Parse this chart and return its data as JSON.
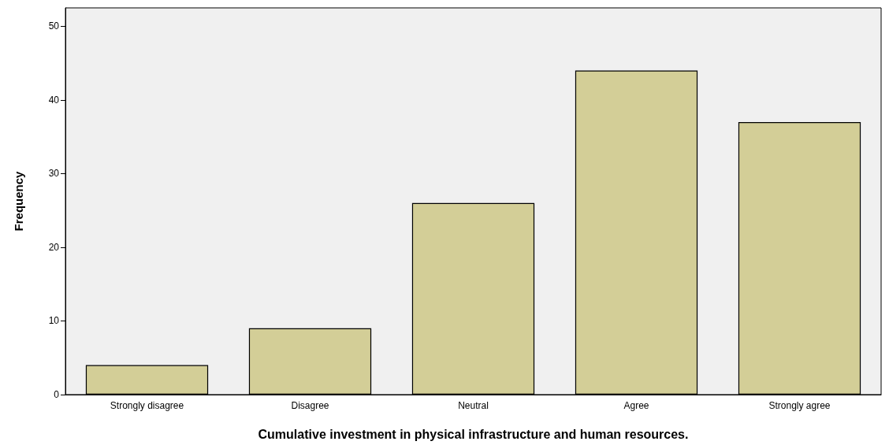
{
  "chart_data": {
    "type": "bar",
    "xlabel": "Cumulative investment in physical infrastructure and human resources.",
    "ylabel": "Frequency",
    "categories": [
      "Strongly disagree",
      "Disagree",
      "Neutral",
      "Agree",
      "Strongly agree"
    ],
    "values": [
      4,
      9,
      26,
      44,
      37
    ],
    "color": "#d3ce97",
    "ylim": [
      0,
      52.5
    ],
    "yticks": [
      0,
      10,
      20,
      30,
      40,
      50
    ],
    "grid": false
  }
}
